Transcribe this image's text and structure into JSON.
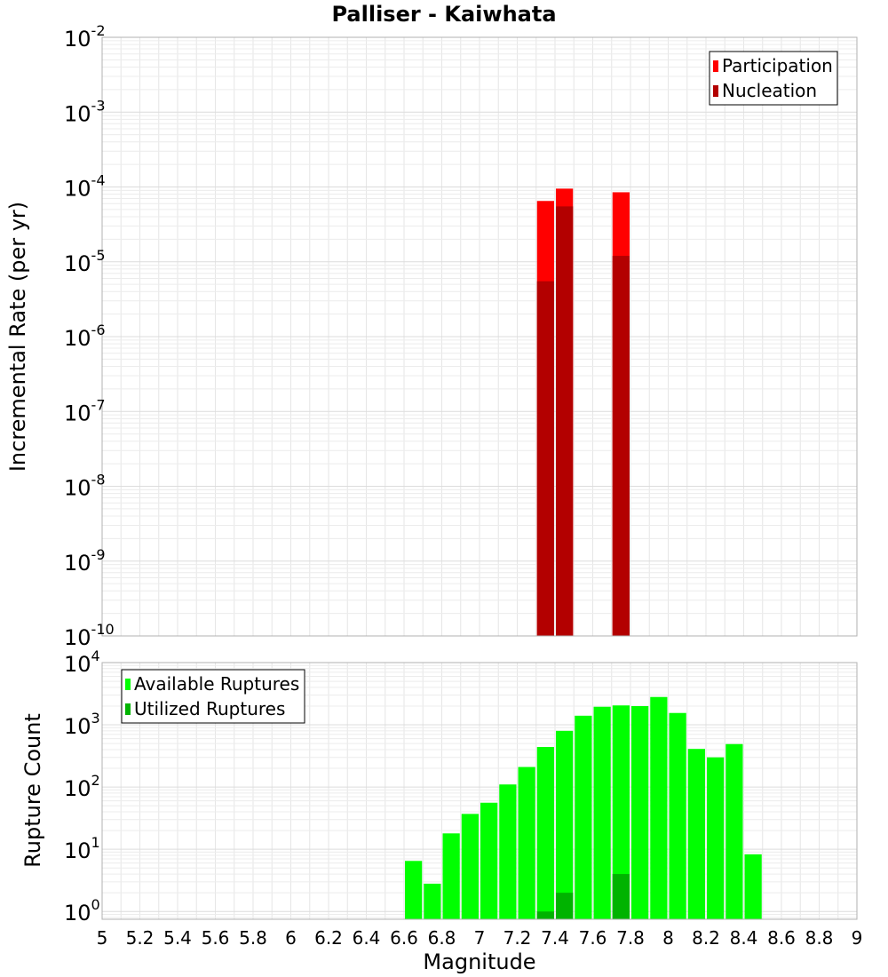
{
  "chart_data": [
    {
      "type": "bar",
      "title": "Palliser - Kaiwhata",
      "xlabel": "",
      "ylabel": "Incremental Rate (per yr)",
      "yscale": "log",
      "xlim": [
        5,
        9
      ],
      "ylim": [
        1e-10,
        0.01
      ],
      "y_tick_exponents": [
        -10,
        -9,
        -8,
        -7,
        -6,
        -5,
        -4,
        -3,
        -2
      ],
      "grid": true,
      "legend_position": "top-right",
      "series": [
        {
          "name": "Participation",
          "color": "#ff0000",
          "x": [
            7.35,
            7.45,
            7.75
          ],
          "values": [
            6.5e-05,
            9.5e-05,
            8.5e-05
          ]
        },
        {
          "name": "Nucleation",
          "color": "#b30000",
          "x": [
            7.35,
            7.45,
            7.75
          ],
          "values": [
            5.5e-06,
            5.5e-05,
            1.2e-05
          ]
        }
      ]
    },
    {
      "type": "bar",
      "title": "",
      "xlabel": "Magnitude",
      "ylabel": "Rupture Count",
      "yscale": "log",
      "xlim": [
        5,
        9
      ],
      "ylim": [
        0.75,
        10000
      ],
      "y_tick_exponents": [
        0,
        1,
        2,
        3,
        4
      ],
      "x_ticks": [
        "5",
        "5.2",
        "5.4",
        "5.6",
        "5.8",
        "6",
        "6.2",
        "6.4",
        "6.6",
        "6.8",
        "7",
        "7.2",
        "7.4",
        "7.6",
        "7.8",
        "8",
        "8.2",
        "8.4",
        "8.6",
        "8.8",
        "9"
      ],
      "grid": true,
      "legend_position": "top-left",
      "series": [
        {
          "name": "Available Ruptures",
          "color": "#00ff00",
          "x": [
            6.65,
            6.75,
            6.85,
            6.95,
            7.05,
            7.15,
            7.25,
            7.35,
            7.45,
            7.55,
            7.65,
            7.75,
            7.85,
            7.95,
            8.05,
            8.15,
            8.25,
            8.35,
            8.45
          ],
          "values": [
            6.5,
            2.8,
            18,
            37,
            56,
            110,
            210,
            440,
            800,
            1400,
            1950,
            2050,
            2000,
            2800,
            1550,
            410,
            300,
            490,
            8.3
          ]
        },
        {
          "name": "Utilized Ruptures",
          "color": "#00b300",
          "x": [
            7.35,
            7.45,
            7.75
          ],
          "values": [
            1,
            2,
            4
          ]
        }
      ]
    }
  ]
}
